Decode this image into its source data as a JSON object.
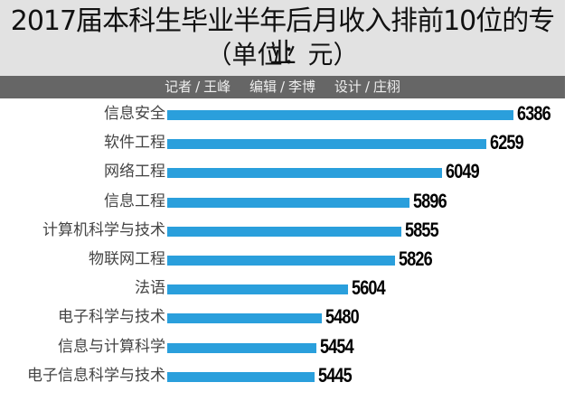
{
  "header": {
    "title": "2017届本科生毕业半年后月收入排前10位的专业",
    "subtitle": "（单位：元）",
    "credits": [
      {
        "role": "记者",
        "name": "王峰"
      },
      {
        "role": "编辑",
        "name": "李博"
      },
      {
        "role": "设计",
        "name": "庄栩"
      }
    ]
  },
  "colors": {
    "bar": "#2a9fdc",
    "header_bg": "#e2e2e2",
    "credit_bar_bg": "#666666"
  },
  "chart_data": {
    "type": "bar",
    "orientation": "horizontal",
    "title": "2017届本科生毕业半年后月收入排前10位的专业",
    "subtitle": "（单位：元）",
    "xlabel": "",
    "ylabel": "",
    "unit": "元",
    "categories": [
      "信息安全",
      "软件工程",
      "网络工程",
      "信息工程",
      "计算机科学与技术",
      "物联网工程",
      "法语",
      "电子科学与技术",
      "信息与计算科学",
      "电子信息科学与技术"
    ],
    "values": [
      6386,
      6259,
      6049,
      5896,
      5855,
      5826,
      5604,
      5480,
      5454,
      5445
    ],
    "grid": false,
    "legend": null
  },
  "rows": [
    {
      "label": "信息安全",
      "value": "6386"
    },
    {
      "label": "软件工程",
      "value": "6259"
    },
    {
      "label": "网络工程",
      "value": "6049"
    },
    {
      "label": "信息工程",
      "value": "5896"
    },
    {
      "label": "计算机科学与技术",
      "value": "5855"
    },
    {
      "label": "物联网工程",
      "value": "5826"
    },
    {
      "label": "法语",
      "value": "5604"
    },
    {
      "label": "电子科学与技术",
      "value": "5480"
    },
    {
      "label": "信息与计算科学",
      "value": "5454"
    },
    {
      "label": "电子信息科学与技术",
      "value": "5445"
    }
  ]
}
